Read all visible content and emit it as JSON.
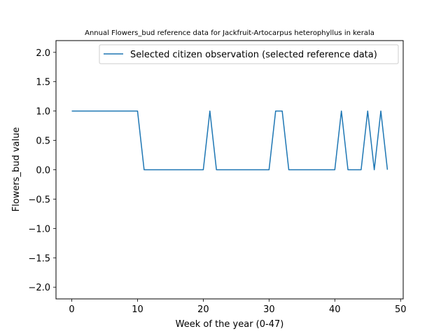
{
  "chart_data": {
    "type": "line",
    "title": "Annual Flowers_bud reference data for Jackfruit-Artocarpus heterophyllus in kerala",
    "xlabel": "Week of the year (0-47)",
    "ylabel": "Flowers_bud value",
    "xlim": [
      -2.4,
      50.4
    ],
    "ylim": [
      -2.2,
      2.2
    ],
    "xticks": [
      0,
      10,
      20,
      30,
      40,
      50
    ],
    "yticks": [
      -2.0,
      -1.5,
      -1.0,
      -0.5,
      0.0,
      0.5,
      1.0,
      1.5,
      2.0
    ],
    "xtick_labels": [
      "0",
      "10",
      "20",
      "30",
      "40",
      "50"
    ],
    "ytick_labels": [
      "−2.0",
      "−1.5",
      "−1.0",
      "−0.5",
      "0.0",
      "0.5",
      "1.0",
      "1.5",
      "2.0"
    ],
    "grid": false,
    "legend_position": "top-right",
    "series": [
      {
        "name": "Selected citizen observation (selected reference data)",
        "color": "#1f77b4",
        "x": [
          0,
          1,
          2,
          3,
          4,
          5,
          6,
          7,
          8,
          9,
          10,
          11,
          12,
          13,
          14,
          15,
          16,
          17,
          18,
          19,
          20,
          21,
          22,
          23,
          24,
          25,
          26,
          27,
          28,
          29,
          30,
          31,
          32,
          33,
          34,
          35,
          36,
          37,
          38,
          39,
          40,
          41,
          42,
          43,
          44,
          45,
          46,
          47,
          48
        ],
        "y": [
          1,
          1,
          1,
          1,
          1,
          1,
          1,
          1,
          1,
          1,
          1,
          0,
          0,
          0,
          0,
          0,
          0,
          0,
          0,
          0,
          0,
          1,
          0,
          0,
          0,
          0,
          0,
          0,
          0,
          0,
          0,
          1,
          1,
          0,
          0,
          0,
          0,
          0,
          0,
          0,
          0,
          1,
          0,
          0,
          0,
          1,
          0,
          1,
          0
        ]
      }
    ]
  }
}
